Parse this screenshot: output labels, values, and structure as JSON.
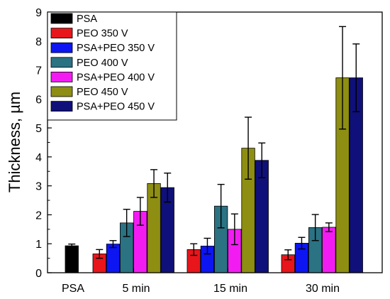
{
  "chart_data": {
    "type": "bar",
    "title": "",
    "xlabel": "",
    "ylabel": "Thickness, µm",
    "ylim": [
      0,
      9
    ],
    "yticks": [
      0,
      1,
      2,
      3,
      4,
      5,
      6,
      7,
      8,
      9
    ],
    "grid": false,
    "legend_position": "top-left",
    "categories": [
      "PSA",
      "5 min",
      "15 min",
      "30 min"
    ],
    "series": [
      {
        "name": "PSA",
        "color": "#000000",
        "values": [
          0.93,
          null,
          null,
          null
        ],
        "errors": [
          0.06,
          null,
          null,
          null
        ]
      },
      {
        "name": "PEO 350 V",
        "color": "#e8151b",
        "values": [
          null,
          0.65,
          0.8,
          0.62
        ],
        "errors": [
          null,
          0.15,
          0.2,
          0.17
        ]
      },
      {
        "name": "PSA+PEO 350 V",
        "color": "#0c15f2",
        "values": [
          null,
          0.99,
          0.92,
          1.02
        ],
        "errors": [
          null,
          0.12,
          0.27,
          0.2
        ]
      },
      {
        "name": "PEO 400 V",
        "color": "#2b7283",
        "values": [
          null,
          1.72,
          2.3,
          1.56
        ],
        "errors": [
          null,
          0.47,
          0.75,
          0.45
        ]
      },
      {
        "name": "PSA+PEO 400 V",
        "color": "#f21cf2",
        "values": [
          null,
          2.12,
          1.5,
          1.57
        ],
        "errors": [
          null,
          0.48,
          0.53,
          0.15
        ]
      },
      {
        "name": "PEO 450 V",
        "color": "#8e8e13",
        "values": [
          null,
          3.08,
          4.3,
          6.73
        ],
        "errors": [
          null,
          0.48,
          1.07,
          1.77
        ]
      },
      {
        "name": "PSA+PEO 450 V",
        "color": "#10107a",
        "values": [
          null,
          2.94,
          3.88,
          6.73
        ],
        "errors": [
          null,
          0.5,
          0.6,
          1.17
        ]
      }
    ]
  }
}
